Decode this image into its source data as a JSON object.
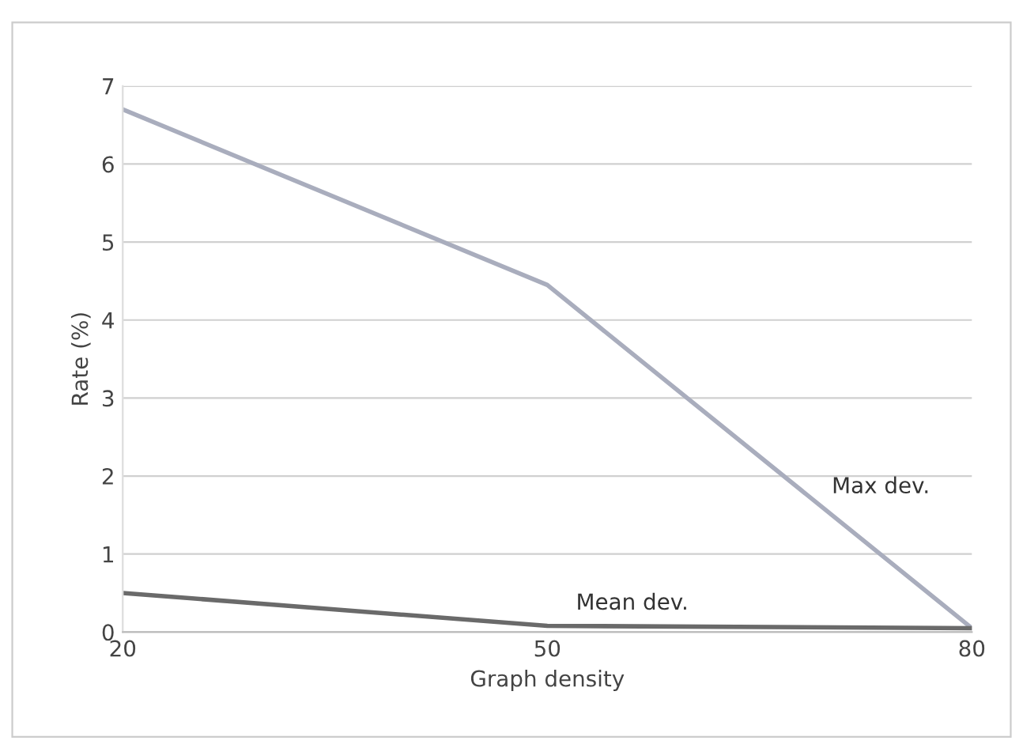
{
  "chart_data": {
    "type": "line",
    "xlabel": "Graph density",
    "ylabel": "Rate (%)",
    "x": [
      20,
      50,
      80
    ],
    "xlim": [
      20,
      80
    ],
    "xticks": [
      20,
      50,
      80
    ],
    "ylim": [
      0,
      7
    ],
    "yticks": [
      0,
      1,
      2,
      3,
      4,
      5,
      6,
      7
    ],
    "grid": "y",
    "legend": false,
    "marker": "none",
    "line_style": "solid",
    "series": [
      {
        "name": "Max dev.",
        "color": "#a9adbd",
        "values": [
          6.7,
          4.45,
          0.05
        ]
      },
      {
        "name": "Mean dev.",
        "color": "#6a6a6a",
        "values": [
          0.5,
          0.08,
          0.05
        ]
      }
    ]
  }
}
